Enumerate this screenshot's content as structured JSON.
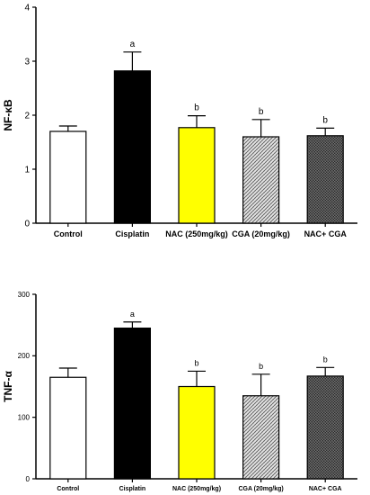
{
  "chart_data": [
    {
      "type": "bar",
      "ylabel": "NF-κB",
      "xlabel": "",
      "title": "",
      "ylim": [
        0,
        4
      ],
      "yticks": [
        "0",
        "1",
        "2",
        "3",
        "4"
      ],
      "categories": [
        "Control",
        "Cisplatin",
        "NAC (250mg/kg)",
        "CGA (20mg/kg)",
        "NAC+ CGA"
      ],
      "values": [
        1.7,
        2.82,
        1.77,
        1.6,
        1.62
      ],
      "errors": [
        0.1,
        0.35,
        0.22,
        0.32,
        0.14
      ],
      "significance": [
        "",
        "a",
        "b",
        "b",
        "b"
      ],
      "bar_fills": [
        "#ffffff",
        "#000000",
        "#ffff00",
        "pattern-light",
        "pattern-dark"
      ]
    },
    {
      "type": "bar",
      "ylabel": "TNF-α",
      "xlabel": "",
      "title": "",
      "ylim": [
        0,
        300
      ],
      "yticks": [
        "0",
        "100",
        "200",
        "300"
      ],
      "categories": [
        "Control",
        "Cisplatin",
        "NAC (250mg/kg)",
        "CGA (20mg/kg)",
        "NAC+ CGA"
      ],
      "values": [
        165,
        245,
        150,
        135,
        167
      ],
      "errors": [
        15,
        10,
        25,
        35,
        14
      ],
      "significance": [
        "",
        "a",
        "b",
        "b",
        "b"
      ],
      "bar_fills": [
        "#ffffff",
        "#000000",
        "#ffff00",
        "pattern-light",
        "pattern-dark"
      ]
    }
  ]
}
